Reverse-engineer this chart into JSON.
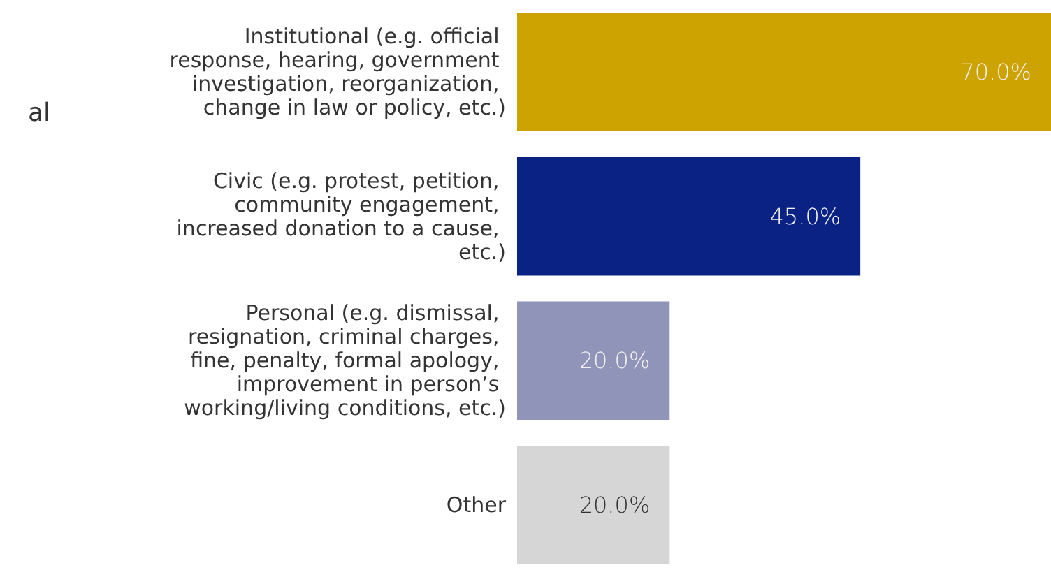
{
  "chart_data": {
    "type": "bar",
    "orientation": "horizontal",
    "tick_labels": "y",
    "categories": [
      "Institutional (e.g. official response, hearing, government investigation, reorganization, change in law or policy, etc.)",
      "Civic (e.g. protest, petition, community engagement, increased donation to a cause, etc.)",
      "Personal (e.g. dismissal, resignation, criminal charges, fine, penalty, formal apology, improvement in person’s working/living conditions, etc.)",
      "Other"
    ],
    "values": [
      70,
      45,
      20,
      20
    ],
    "colors": [
      "#cca300",
      "#0a2284",
      "#9094b8",
      "#d6d6d6"
    ],
    "value_labels": [
      "70.0%",
      "45.0%",
      "20.0%",
      "20.0%"
    ],
    "annotations": [
      "al"
    ]
  }
}
